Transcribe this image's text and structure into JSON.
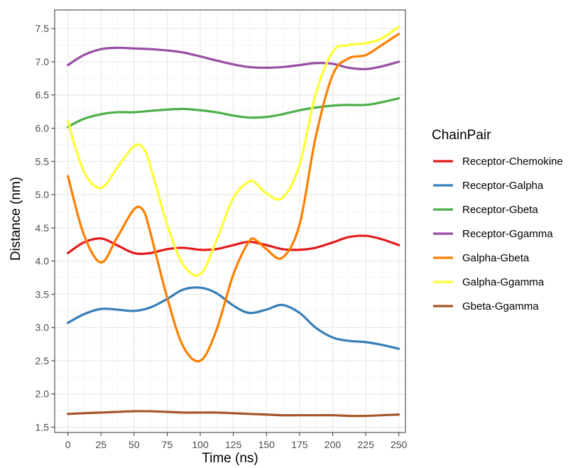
{
  "chart_data": {
    "type": "line",
    "xlabel": "Time (ns)",
    "ylabel": "Distance (nm)",
    "xlim": [
      -10,
      255
    ],
    "ylim": [
      1.42,
      7.78
    ],
    "x_ticks": [
      0,
      25,
      50,
      75,
      100,
      125,
      150,
      175,
      200,
      225,
      250
    ],
    "y_ticks": [
      1.5,
      2.0,
      2.5,
      3.0,
      3.5,
      4.0,
      4.5,
      5.0,
      5.5,
      6.0,
      6.5,
      7.0,
      7.5
    ],
    "grid": true,
    "legend_title": "ChainPair",
    "legend_position": "right",
    "series": [
      {
        "name": "Receptor-Chemokine",
        "color": "#E41A1C",
        "x": [
          0,
          12,
          25,
          37,
          50,
          62,
          75,
          87,
          100,
          112,
          125,
          137,
          150,
          162,
          175,
          187,
          200,
          212,
          225,
          237,
          250
        ],
        "y": [
          4.12,
          4.28,
          4.34,
          4.24,
          4.12,
          4.12,
          4.18,
          4.2,
          4.17,
          4.18,
          4.24,
          4.29,
          4.24,
          4.18,
          4.17,
          4.2,
          4.28,
          4.36,
          4.38,
          4.33,
          4.24
        ]
      },
      {
        "name": "Receptor-Galpha",
        "color": "#377EB8",
        "x": [
          0,
          12,
          25,
          37,
          50,
          62,
          75,
          87,
          100,
          112,
          125,
          137,
          150,
          162,
          175,
          187,
          200,
          212,
          225,
          237,
          250
        ],
        "y": [
          3.07,
          3.2,
          3.28,
          3.27,
          3.25,
          3.3,
          3.43,
          3.57,
          3.6,
          3.52,
          3.33,
          3.22,
          3.27,
          3.34,
          3.22,
          3.0,
          2.85,
          2.8,
          2.78,
          2.74,
          2.68
        ]
      },
      {
        "name": "Receptor-Gbeta",
        "color": "#4DAF4A",
        "x": [
          0,
          12,
          25,
          37,
          50,
          62,
          75,
          87,
          100,
          112,
          125,
          137,
          150,
          162,
          175,
          187,
          200,
          212,
          225,
          237,
          250
        ],
        "y": [
          6.02,
          6.14,
          6.21,
          6.24,
          6.24,
          6.26,
          6.28,
          6.29,
          6.27,
          6.24,
          6.19,
          6.16,
          6.17,
          6.21,
          6.27,
          6.31,
          6.34,
          6.35,
          6.35,
          6.39,
          6.45
        ]
      },
      {
        "name": "Receptor-Ggamma",
        "color": "#984EA3",
        "x": [
          0,
          12,
          25,
          37,
          50,
          62,
          75,
          87,
          100,
          112,
          125,
          137,
          150,
          162,
          175,
          187,
          200,
          212,
          225,
          237,
          250
        ],
        "y": [
          6.95,
          7.1,
          7.19,
          7.21,
          7.2,
          7.19,
          7.17,
          7.14,
          7.08,
          7.02,
          6.96,
          6.92,
          6.91,
          6.92,
          6.95,
          6.98,
          6.97,
          6.91,
          6.89,
          6.93,
          7.0
        ]
      },
      {
        "name": "Galpha-Gbeta",
        "color": "#FF7F00",
        "x": [
          0,
          12,
          25,
          37,
          50,
          57,
          62,
          75,
          87,
          100,
          112,
          125,
          137,
          143,
          150,
          162,
          175,
          187,
          200,
          212,
          225,
          237,
          250
        ],
        "y": [
          5.28,
          4.4,
          3.98,
          4.35,
          4.78,
          4.76,
          4.45,
          3.45,
          2.72,
          2.5,
          2.95,
          3.8,
          4.3,
          4.3,
          4.18,
          4.05,
          4.55,
          5.85,
          6.8,
          7.05,
          7.1,
          7.25,
          7.42
        ]
      },
      {
        "name": "Galpha-Ggamma",
        "color": "#FFFF33",
        "x": [
          0,
          12,
          25,
          37,
          50,
          57,
          62,
          75,
          87,
          100,
          112,
          125,
          137,
          143,
          150,
          162,
          175,
          187,
          200,
          212,
          225,
          237,
          250
        ],
        "y": [
          6.1,
          5.35,
          5.1,
          5.4,
          5.73,
          5.7,
          5.45,
          4.55,
          3.95,
          3.8,
          4.3,
          4.95,
          5.2,
          5.15,
          5.02,
          4.95,
          5.45,
          6.5,
          7.15,
          7.25,
          7.28,
          7.35,
          7.53
        ]
      },
      {
        "name": "Gbeta-Ggamma",
        "color": "#A65628",
        "x": [
          0,
          12,
          25,
          37,
          50,
          62,
          75,
          87,
          100,
          112,
          125,
          137,
          150,
          162,
          175,
          187,
          200,
          212,
          225,
          237,
          250
        ],
        "y": [
          1.7,
          1.71,
          1.72,
          1.73,
          1.74,
          1.74,
          1.73,
          1.72,
          1.72,
          1.72,
          1.71,
          1.7,
          1.69,
          1.68,
          1.68,
          1.68,
          1.68,
          1.67,
          1.67,
          1.68,
          1.69
        ]
      }
    ]
  }
}
